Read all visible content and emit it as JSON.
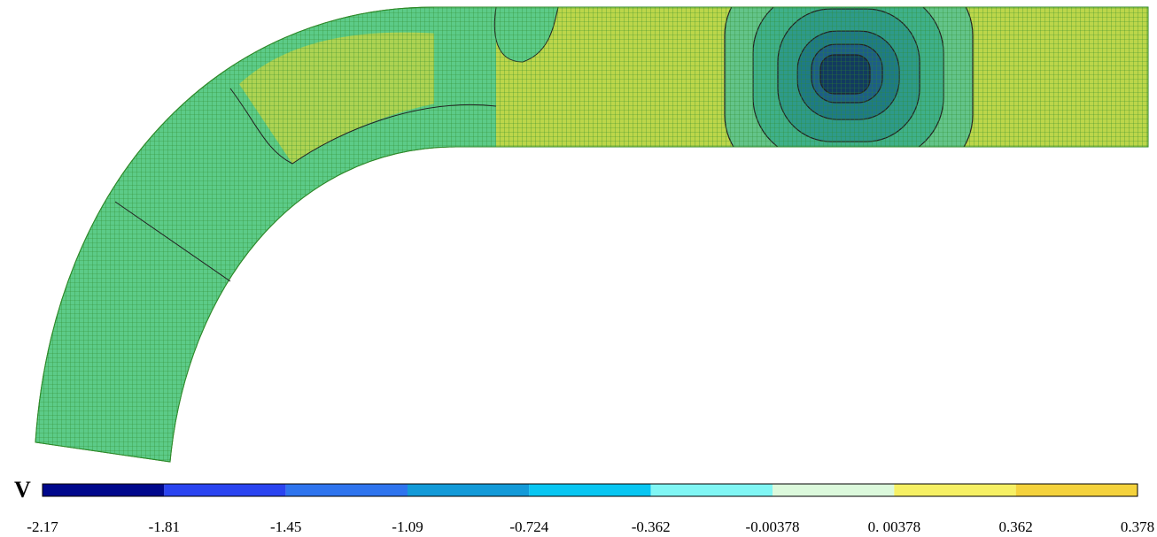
{
  "chart_data": {
    "type": "contour",
    "colorbar": {
      "label": "V",
      "ticks": [
        -2.17,
        -1.81,
        -1.45,
        -1.09,
        -0.724,
        -0.362,
        -0.00378,
        {
          "value": 0.00378,
          "label": "0. 00378"
        },
        0.362,
        0.378
      ],
      "colors": [
        "#00088c",
        "#2a44f0",
        "#2e74ee",
        "#139ad8",
        "#08c6f2",
        "#80f6f4",
        "#dcf9dc",
        "#f6f064",
        "#f4d23c"
      ]
    }
  }
}
